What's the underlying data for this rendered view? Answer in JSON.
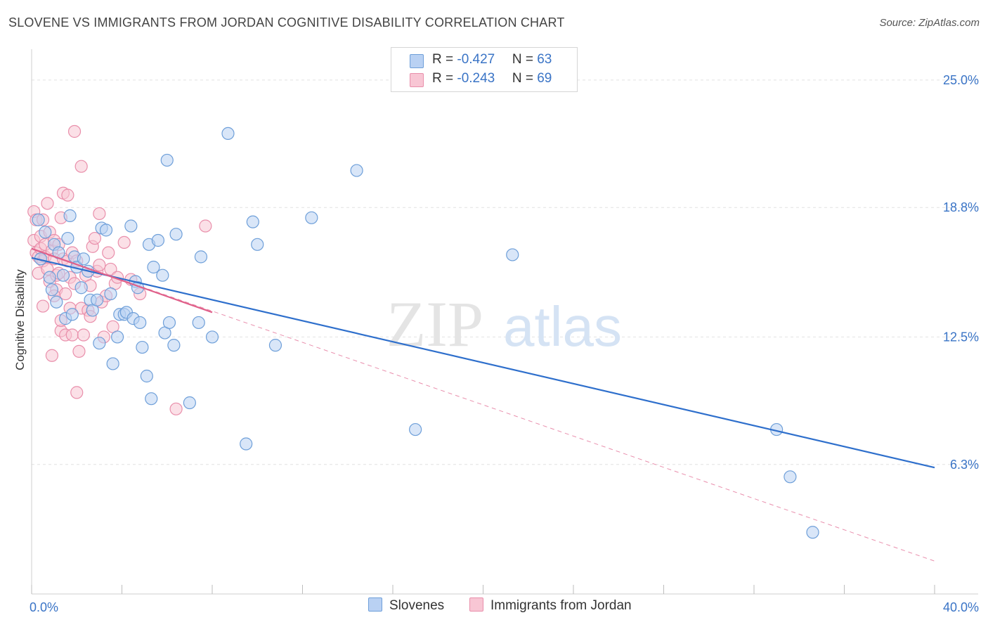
{
  "title": "SLOVENE VS IMMIGRANTS FROM JORDAN COGNITIVE DISABILITY CORRELATION CHART",
  "source": "Source: ZipAtlas.com",
  "watermark": {
    "zip": "ZIP",
    "atlas": "atlas"
  },
  "legend": {
    "rows": [
      {
        "r_label": "R = ",
        "r_value": "-0.427",
        "n_label": "N = ",
        "n_value": "63"
      },
      {
        "r_label": "R = ",
        "r_value": "-0.243",
        "n_label": "N = ",
        "n_value": "69"
      }
    ]
  },
  "bottom_legend": [
    "Slovenes",
    "Immigrants from Jordan"
  ],
  "colors": {
    "blue_fill": "#b9d1f3",
    "blue_stroke": "#6e9fd9",
    "blue_line": "#2e6fcc",
    "pink_fill": "#f8c6d4",
    "pink_stroke": "#e98fab",
    "pink_line": "#e0608a",
    "tick_text": "#3a74c6",
    "grid": "#e2e2e2"
  },
  "chart_data": {
    "type": "scatter",
    "title": "SLOVENE VS IMMIGRANTS FROM JORDAN COGNITIVE DISABILITY CORRELATION CHART",
    "xlabel": "",
    "ylabel": "Cognitive Disability",
    "xlim": [
      0,
      40
    ],
    "ylim": [
      0,
      26.5
    ],
    "x_tick_labels": [
      "0.0%",
      "40.0%"
    ],
    "y_ticks": [
      6.3,
      12.5,
      18.8,
      25.0
    ],
    "y_tick_labels": [
      "6.3%",
      "12.5%",
      "18.8%",
      "25.0%"
    ],
    "grid": true,
    "legend_position": "top-center",
    "series": [
      {
        "name": "Slovenes",
        "color": "#6e9fd9",
        "points": [
          [
            0.3,
            18.2
          ],
          [
            0.4,
            16.3
          ],
          [
            0.6,
            17.6
          ],
          [
            0.8,
            15.4
          ],
          [
            0.9,
            14.8
          ],
          [
            1.0,
            17.0
          ],
          [
            1.1,
            14.2
          ],
          [
            1.2,
            16.6
          ],
          [
            1.4,
            15.5
          ],
          [
            1.5,
            13.4
          ],
          [
            1.6,
            17.3
          ],
          [
            1.7,
            18.4
          ],
          [
            1.8,
            13.6
          ],
          [
            1.9,
            16.4
          ],
          [
            2.0,
            15.9
          ],
          [
            2.2,
            14.9
          ],
          [
            2.3,
            16.3
          ],
          [
            2.5,
            15.7
          ],
          [
            2.6,
            14.3
          ],
          [
            2.7,
            13.8
          ],
          [
            2.9,
            14.3
          ],
          [
            3.0,
            12.2
          ],
          [
            3.1,
            17.8
          ],
          [
            3.3,
            17.7
          ],
          [
            3.5,
            14.6
          ],
          [
            3.6,
            11.2
          ],
          [
            3.8,
            12.5
          ],
          [
            3.9,
            13.6
          ],
          [
            4.1,
            13.6
          ],
          [
            4.2,
            13.7
          ],
          [
            4.4,
            17.9
          ],
          [
            4.5,
            13.4
          ],
          [
            4.6,
            15.2
          ],
          [
            4.7,
            14.9
          ],
          [
            4.8,
            13.2
          ],
          [
            4.9,
            12.0
          ],
          [
            5.1,
            10.6
          ],
          [
            5.2,
            17.0
          ],
          [
            5.3,
            9.5
          ],
          [
            5.4,
            15.9
          ],
          [
            5.6,
            17.2
          ],
          [
            5.8,
            15.5
          ],
          [
            5.9,
            12.7
          ],
          [
            6.0,
            21.1
          ],
          [
            6.1,
            13.2
          ],
          [
            6.3,
            12.1
          ],
          [
            6.4,
            17.5
          ],
          [
            7.0,
            9.3
          ],
          [
            7.4,
            13.2
          ],
          [
            7.5,
            16.4
          ],
          [
            8.0,
            12.5
          ],
          [
            8.7,
            22.4
          ],
          [
            9.5,
            7.3
          ],
          [
            9.8,
            18.1
          ],
          [
            10.0,
            17.0
          ],
          [
            10.8,
            12.1
          ],
          [
            12.4,
            18.3
          ],
          [
            14.4,
            20.6
          ],
          [
            17.0,
            8.0
          ],
          [
            33.6,
            5.7
          ],
          [
            21.3,
            16.5
          ],
          [
            33.0,
            8.0
          ],
          [
            34.6,
            3.0
          ]
        ]
      },
      {
        "name": "Immigrants from Jordan",
        "color": "#e98fab",
        "points": [
          [
            0.1,
            18.6
          ],
          [
            0.1,
            17.2
          ],
          [
            0.2,
            16.6
          ],
          [
            0.2,
            18.2
          ],
          [
            0.3,
            16.4
          ],
          [
            0.3,
            15.6
          ],
          [
            0.4,
            17.4
          ],
          [
            0.4,
            16.8
          ],
          [
            0.5,
            18.2
          ],
          [
            0.5,
            16.2
          ],
          [
            0.6,
            17.0
          ],
          [
            0.6,
            16.4
          ],
          [
            0.7,
            19.0
          ],
          [
            0.7,
            15.8
          ],
          [
            0.8,
            17.6
          ],
          [
            0.8,
            15.2
          ],
          [
            0.9,
            16.7
          ],
          [
            0.9,
            11.6
          ],
          [
            1.0,
            17.2
          ],
          [
            1.0,
            16.3
          ],
          [
            1.1,
            15.5
          ],
          [
            1.1,
            14.8
          ],
          [
            1.2,
            17.0
          ],
          [
            1.2,
            15.6
          ],
          [
            1.3,
            18.3
          ],
          [
            1.3,
            12.8
          ],
          [
            1.4,
            19.5
          ],
          [
            1.4,
            16.3
          ],
          [
            1.5,
            14.6
          ],
          [
            1.5,
            12.6
          ],
          [
            1.6,
            19.4
          ],
          [
            1.6,
            16.2
          ],
          [
            1.7,
            15.4
          ],
          [
            1.7,
            13.9
          ],
          [
            1.8,
            16.6
          ],
          [
            1.8,
            12.6
          ],
          [
            1.9,
            22.5
          ],
          [
            1.9,
            15.1
          ],
          [
            2.0,
            16.2
          ],
          [
            2.0,
            9.8
          ],
          [
            2.1,
            11.8
          ],
          [
            2.2,
            20.8
          ],
          [
            2.2,
            13.9
          ],
          [
            2.3,
            12.6
          ],
          [
            2.4,
            15.5
          ],
          [
            2.5,
            13.8
          ],
          [
            2.6,
            13.5
          ],
          [
            2.7,
            16.9
          ],
          [
            2.8,
            17.3
          ],
          [
            2.9,
            15.7
          ],
          [
            3.0,
            18.5
          ],
          [
            3.1,
            14.2
          ],
          [
            3.2,
            12.5
          ],
          [
            3.3,
            14.5
          ],
          [
            3.4,
            16.6
          ],
          [
            3.5,
            15.8
          ],
          [
            3.6,
            13.0
          ],
          [
            3.7,
            15.1
          ],
          [
            3.8,
            15.4
          ],
          [
            4.1,
            17.1
          ],
          [
            4.4,
            15.3
          ],
          [
            4.8,
            14.6
          ],
          [
            6.4,
            9.0
          ],
          [
            7.7,
            17.9
          ],
          [
            0.5,
            14.0
          ],
          [
            1.0,
            14.5
          ],
          [
            2.6,
            15.0
          ],
          [
            3.0,
            16.0
          ],
          [
            1.3,
            13.3
          ]
        ]
      }
    ],
    "trend_lines": [
      {
        "series": "Slovenes",
        "from": [
          0,
          16.35
        ],
        "to": [
          40,
          6.15
        ],
        "style": "solid"
      },
      {
        "series": "Immigrants from Jordan",
        "from": [
          0,
          16.8
        ],
        "to": [
          8,
          13.7
        ],
        "style": "solid",
        "extended_to": [
          40,
          1.6
        ],
        "extended_style": "dashed"
      }
    ]
  }
}
